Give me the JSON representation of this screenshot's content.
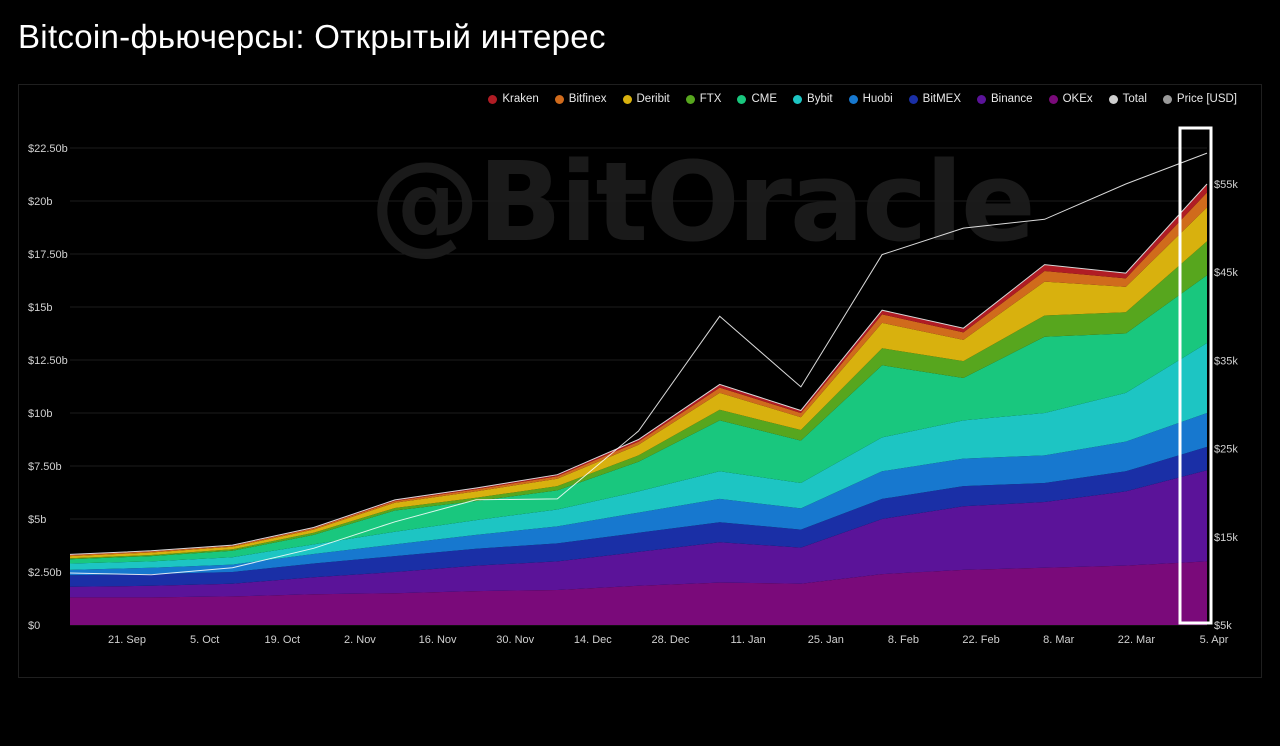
{
  "page": {
    "title": "Bitcoin-фьючерсы: Открытый интерес",
    "watermark": "@BitOracle"
  },
  "chart_data": {
    "type": "area",
    "stacked": true,
    "x": [
      "21. Sep",
      "5. Oct",
      "19. Oct",
      "2. Nov",
      "16. Nov",
      "30. Nov",
      "14. Dec",
      "28. Dec",
      "11. Jan",
      "25. Jan",
      "8. Feb",
      "22. Feb",
      "8. Mar",
      "22. Mar",
      "5. Apr"
    ],
    "categories_note_free": true,
    "y_ticks": [
      "$0",
      "$2.50b",
      "$5b",
      "$7.50b",
      "$10b",
      "$12.50b",
      "$15b",
      "$17.50b",
      "$20b",
      "$22.50b"
    ],
    "ylim": [
      0,
      22.5
    ],
    "y2_ticks": [
      "$5k",
      "$15k",
      "$25k",
      "$35k",
      "$45k",
      "$55k"
    ],
    "y2lim": [
      5000,
      55000
    ],
    "legend_position": "top-right",
    "grid": true,
    "series": [
      {
        "name": "OKEx",
        "color": "#7a0a7a",
        "values": [
          1.3,
          1.3,
          1.35,
          1.45,
          1.5,
          1.6,
          1.65,
          1.85,
          2.0,
          1.95,
          2.4,
          2.6,
          2.7,
          2.8,
          3.0
        ]
      },
      {
        "name": "Binance",
        "color": "#5b1399",
        "values": [
          0.5,
          0.55,
          0.6,
          0.8,
          1.0,
          1.2,
          1.35,
          1.6,
          1.9,
          1.7,
          2.6,
          3.0,
          3.1,
          3.5,
          4.3
        ]
      },
      {
        "name": "BitMEX",
        "color": "#1a2fa6",
        "values": [
          0.55,
          0.55,
          0.55,
          0.65,
          0.75,
          0.8,
          0.85,
          0.9,
          0.95,
          0.85,
          0.95,
          0.95,
          0.9,
          0.95,
          1.1
        ]
      },
      {
        "name": "Huobi",
        "color": "#1778cf",
        "values": [
          0.25,
          0.3,
          0.35,
          0.45,
          0.55,
          0.65,
          0.8,
          0.95,
          1.1,
          1.0,
          1.3,
          1.3,
          1.3,
          1.4,
          1.6
        ]
      },
      {
        "name": "Bybit",
        "color": "#1dc5c3",
        "values": [
          0.3,
          0.3,
          0.35,
          0.45,
          0.6,
          0.7,
          0.8,
          1.0,
          1.3,
          1.2,
          1.6,
          1.8,
          2.0,
          2.3,
          3.3
        ]
      },
      {
        "name": "CME",
        "color": "#19c77e",
        "values": [
          0.2,
          0.25,
          0.3,
          0.45,
          1.0,
          0.9,
          0.9,
          1.4,
          2.4,
          2.0,
          3.4,
          2.0,
          3.6,
          2.8,
          3.2
        ]
      },
      {
        "name": "FTX",
        "color": "#57a61e",
        "values": [
          0.05,
          0.05,
          0.07,
          0.1,
          0.12,
          0.15,
          0.2,
          0.3,
          0.5,
          0.5,
          0.8,
          0.8,
          1.0,
          1.0,
          1.6
        ]
      },
      {
        "name": "Deribit",
        "color": "#d8b10e",
        "values": [
          0.1,
          0.12,
          0.12,
          0.15,
          0.25,
          0.3,
          0.35,
          0.5,
          0.8,
          0.6,
          1.2,
          1.0,
          1.6,
          1.2,
          1.6
        ]
      },
      {
        "name": "Bitfinex",
        "color": "#d06b1c",
        "values": [
          0.05,
          0.05,
          0.05,
          0.06,
          0.08,
          0.1,
          0.12,
          0.15,
          0.25,
          0.2,
          0.4,
          0.35,
          0.5,
          0.4,
          0.7
        ]
      },
      {
        "name": "Kraken",
        "color": "#b01c24",
        "values": [
          0.03,
          0.03,
          0.03,
          0.04,
          0.05,
          0.06,
          0.07,
          0.1,
          0.15,
          0.12,
          0.2,
          0.2,
          0.3,
          0.25,
          0.4
        ]
      }
    ],
    "legend": [
      {
        "name": "Kraken",
        "color": "#b01c24"
      },
      {
        "name": "Bitfinex",
        "color": "#d06b1c"
      },
      {
        "name": "Deribit",
        "color": "#d8b10e"
      },
      {
        "name": "FTX",
        "color": "#57a61e"
      },
      {
        "name": "CME",
        "color": "#19c77e"
      },
      {
        "name": "Bybit",
        "color": "#1dc5c3"
      },
      {
        "name": "Huobi",
        "color": "#1778cf"
      },
      {
        "name": "BitMEX",
        "color": "#1a2fa6"
      },
      {
        "name": "Binance",
        "color": "#5b1399"
      },
      {
        "name": "OKEx",
        "color": "#7a0a7a"
      },
      {
        "name": "Total",
        "color": "#cfcfcf"
      },
      {
        "name": "Price [USD]",
        "color": "#9a9a9a"
      }
    ],
    "price": {
      "name": "Price [USD]",
      "values": [
        10900,
        10700,
        11500,
        13700,
        16700,
        19200,
        19300,
        27000,
        40000,
        32000,
        47000,
        50000,
        51000,
        55000,
        58500
      ]
    },
    "highlight": {
      "x": "5. Apr"
    }
  }
}
